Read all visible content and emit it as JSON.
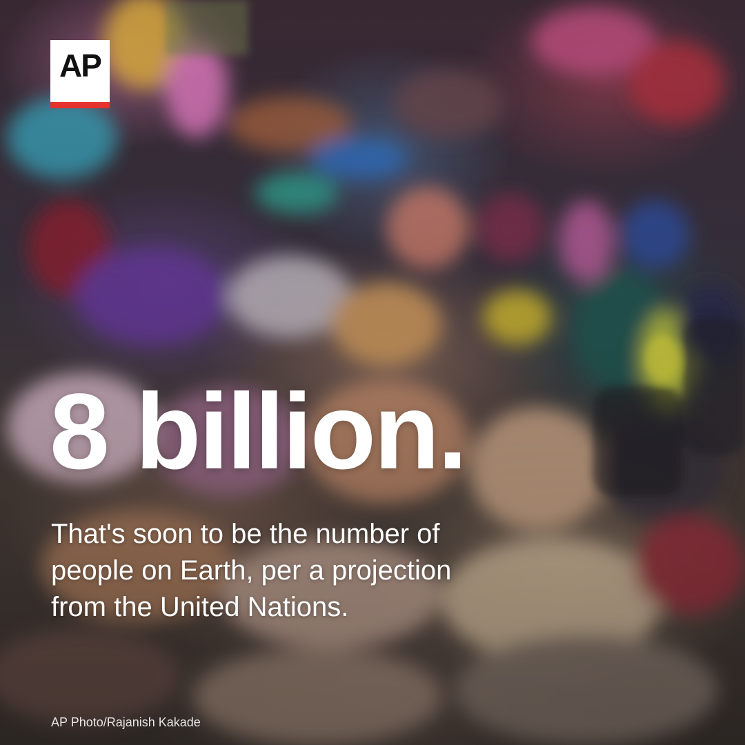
{
  "logo": {
    "text": "AP",
    "accent_color": "#e5322d"
  },
  "headline": "8 billion.",
  "subtitle": "That's soon to be the number of people on Earth, per a projection from the United Nations.",
  "photo_credit": "AP Photo/Rajanish Kakade",
  "photo": {
    "subject": "crowded market street, motion-blurred shoppers"
  }
}
